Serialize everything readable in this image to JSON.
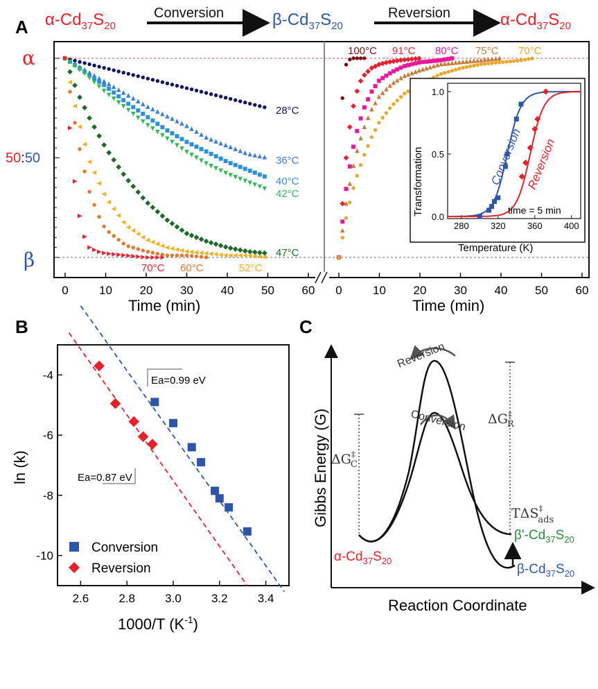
{
  "colors": {
    "red": "#e8202a",
    "blue": "#2e55a8",
    "green": "#2a8a3a",
    "black": "#111111",
    "c28": "#14145a",
    "c36": "#3f7ed8",
    "c40": "#2f8fd8",
    "c42": "#36b85a",
    "c47": "#1f6a2a",
    "c52": "#f0b020",
    "c60": "#e07830",
    "c70": "#e82030",
    "c100": "#7a1010",
    "c91": "#e82030",
    "c80": "#e81a9a",
    "c75": "#c87a3a",
    "c70r": "#e8a830",
    "fit_conv": "#2e55a8",
    "fit_rev": "#e8202a",
    "dash_alpha": "#d05060",
    "dash_beta": "#5a6aa0"
  },
  "panel_a": {
    "letter": "A",
    "header": {
      "alpha_start": "α-Cd",
      "alpha_sub1": "37",
      "alpha_S": "S",
      "alpha_sub2": "20",
      "conversion": "Conversion",
      "beta_mid": "β-Cd",
      "beta_sub1": "37",
      "beta_S": "S",
      "beta_sub2": "20",
      "reversion": "Reversion",
      "alpha_end": "α-Cd",
      "alpha_end_sub1": "37",
      "alpha_end_S": "S",
      "alpha_end_sub2": "20"
    },
    "ylabels": {
      "alpha": "α",
      "fifty_a": "50",
      "colon": ":",
      "fifty_b": "50",
      "beta": "β"
    },
    "xlabel_left": "Time (min)",
    "xlabel_right": "Time (min)",
    "xticks_left": [
      "0",
      "10",
      "20",
      "30",
      "40",
      "50",
      "60"
    ],
    "xticks_right": [
      "0",
      "10",
      "20",
      "30",
      "40",
      "50",
      "60"
    ],
    "temps_left": [
      "28°C",
      "36°C",
      "40°C",
      "42°C",
      "47°C",
      "70°C",
      "60°C",
      "52°C"
    ],
    "temps_right": [
      "100°C",
      "91°C",
      "80°C",
      "75°C",
      "70°C"
    ],
    "inset": {
      "ylabel": "Transformation",
      "xlabel": "Temperature (K)",
      "yticks": [
        "0.0",
        "0.5",
        "1.0"
      ],
      "xticks": [
        "280",
        "320",
        "360",
        "400"
      ],
      "conversion_label": "Conversion",
      "reversion_label": "Reversion",
      "note": "time = 5 min"
    }
  },
  "panel_b": {
    "letter": "B",
    "ylabel": "ln (k)",
    "xlabel": "1000/T (K",
    "xlabel_sup": "-1",
    "xlabel_close": ")",
    "yticks": [
      "-4",
      "-6",
      "-8",
      "-10"
    ],
    "xticks": [
      "2.6",
      "2.8",
      "3.0",
      "3.2",
      "3.4"
    ],
    "ea_conv": "Ea=0.99 eV",
    "ea_rev": "Ea=0.87 eV",
    "legend_conv": "Conversion",
    "legend_rev": "Reversion"
  },
  "panel_c": {
    "letter": "C",
    "ylabel": "Gibbs Energy (G)",
    "xlabel": "Reaction Coordinate",
    "reversion": "Reversion",
    "conversion": "Conversion",
    "dgc": "ΔG",
    "dgc_sup": "‡",
    "dgc_sub": "C",
    "dgr": "ΔG",
    "dgr_sup": "‡",
    "dgr_sub": "R",
    "tds": "TΔS",
    "tds_sup": "‡",
    "tds_sub": "ads",
    "alpha_state": "α-Cd",
    "alpha_sub1": "37",
    "alpha_S": "S",
    "alpha_sub2": "20",
    "betap_state": "β'-Cd",
    "betap_sub1": "37",
    "betap_S": "S",
    "betap_sub2": "20",
    "beta_state": "β-Cd",
    "beta_sub1": "37",
    "beta_S": "S",
    "beta_sub2": "20"
  },
  "chart_data": [
    {
      "type": "scatter",
      "panel": "A-left (conversion)",
      "xlabel": "Time (min)",
      "xlim": [
        -2,
        63
      ],
      "ylim": [
        0,
        1
      ],
      "ylabel_marks": [
        "α",
        "50:50",
        "β"
      ],
      "series": [
        {
          "name": "28°C",
          "color": "#14145a",
          "marker": "circle",
          "x": [
            0,
            5,
            10,
            15,
            20,
            25,
            30,
            35,
            40,
            45,
            50
          ],
          "y": [
            1,
            0.975,
            0.95,
            0.925,
            0.9,
            0.875,
            0.85,
            0.825,
            0.8,
            0.775,
            0.75
          ]
        },
        {
          "name": "36°C",
          "color": "#3f7ed8",
          "marker": "triangle",
          "x": [
            0,
            5,
            10,
            15,
            20,
            25,
            30,
            35,
            40,
            45,
            50
          ],
          "y": [
            1,
            0.94,
            0.88,
            0.82,
            0.76,
            0.71,
            0.66,
            0.6,
            0.56,
            0.52,
            0.5
          ]
        },
        {
          "name": "40°C",
          "color": "#2f8fd8",
          "marker": "square",
          "x": [
            0,
            5,
            10,
            15,
            20,
            25,
            30,
            35,
            40,
            45,
            50
          ],
          "y": [
            1,
            0.93,
            0.86,
            0.78,
            0.71,
            0.64,
            0.58,
            0.53,
            0.48,
            0.44,
            0.4
          ]
        },
        {
          "name": "42°C",
          "color": "#36b85a",
          "marker": "triangle-down",
          "x": [
            0,
            5,
            10,
            15,
            20,
            25,
            30,
            35,
            40,
            45,
            50
          ],
          "y": [
            1,
            0.92,
            0.83,
            0.75,
            0.67,
            0.6,
            0.53,
            0.47,
            0.42,
            0.38,
            0.34
          ]
        },
        {
          "name": "47°C",
          "color": "#1f6a2a",
          "marker": "diamond",
          "x": [
            0,
            3,
            6,
            10,
            15,
            20,
            25,
            30,
            35,
            40,
            45,
            50
          ],
          "y": [
            1,
            0.83,
            0.7,
            0.55,
            0.4,
            0.28,
            0.19,
            0.12,
            0.08,
            0.05,
            0.03,
            0.02
          ]
        },
        {
          "name": "52°C",
          "color": "#f0b020",
          "marker": "triangle-left",
          "x": [
            0,
            3,
            6,
            10,
            15,
            20,
            25,
            30,
            35,
            40,
            45,
            50
          ],
          "y": [
            1,
            0.7,
            0.48,
            0.3,
            0.16,
            0.09,
            0.05,
            0.03,
            0.02,
            0.01,
            0.01,
            0
          ]
        },
        {
          "name": "60°C",
          "color": "#e07830",
          "marker": "circle",
          "x": [
            0,
            2,
            4,
            6,
            8,
            10,
            15,
            20,
            25,
            30,
            35
          ],
          "y": [
            1,
            0.72,
            0.5,
            0.33,
            0.22,
            0.14,
            0.06,
            0.03,
            0.01,
            0.01,
            0
          ]
        },
        {
          "name": "70°C",
          "color": "#e82030",
          "marker": "triangle-right",
          "x": [
            0,
            1,
            2,
            3,
            4,
            5,
            6,
            8,
            10,
            15,
            20,
            25
          ],
          "y": [
            1,
            0.7,
            0.45,
            0.28,
            0.16,
            0.09,
            0.05,
            0.03,
            0.02,
            0.01,
            0,
            0
          ]
        }
      ]
    },
    {
      "type": "scatter",
      "panel": "A-right (reversion)",
      "xlabel": "Time (min)",
      "xlim": [
        -2,
        63
      ],
      "ylim": [
        0,
        1
      ],
      "series": [
        {
          "name": "100°C",
          "color": "#7a1010",
          "marker": "circle",
          "x": [
            0,
            0.5,
            1,
            1.5,
            2,
            3,
            4,
            5,
            6,
            7
          ],
          "y": [
            0,
            0.6,
            0.85,
            0.95,
            0.98,
            1,
            1,
            1,
            1,
            1
          ]
        },
        {
          "name": "91°C",
          "color": "#e82030",
          "marker": "diamond",
          "x": [
            0,
            1,
            2,
            3,
            4,
            5,
            6,
            8,
            10,
            12,
            15,
            20
          ],
          "y": [
            0,
            0.3,
            0.55,
            0.7,
            0.8,
            0.87,
            0.91,
            0.95,
            0.97,
            0.98,
            0.99,
            1
          ]
        },
        {
          "name": "80°C",
          "color": "#e81a9a",
          "marker": "square",
          "x": [
            0,
            1,
            2,
            4,
            6,
            8,
            10,
            13,
            16,
            20,
            25,
            28
          ],
          "y": [
            0,
            0.2,
            0.38,
            0.6,
            0.74,
            0.83,
            0.89,
            0.93,
            0.96,
            0.98,
            0.99,
            1
          ]
        },
        {
          "name": "75°C",
          "color": "#c87a3a",
          "marker": "triangle",
          "x": [
            0,
            1,
            2,
            4,
            6,
            8,
            10,
            13,
            16,
            20,
            25,
            30,
            35,
            40
          ],
          "y": [
            0,
            0.15,
            0.3,
            0.5,
            0.64,
            0.74,
            0.81,
            0.87,
            0.91,
            0.94,
            0.97,
            0.98,
            0.99,
            1
          ]
        },
        {
          "name": "70°C",
          "color": "#e8a830",
          "marker": "circle",
          "x": [
            0,
            2,
            4,
            6,
            8,
            10,
            13,
            16,
            20,
            25,
            30,
            35,
            40,
            45,
            48
          ],
          "y": [
            0,
            0.22,
            0.38,
            0.5,
            0.6,
            0.68,
            0.76,
            0.82,
            0.87,
            0.92,
            0.95,
            0.97,
            0.98,
            0.99,
            1
          ]
        }
      ]
    },
    {
      "type": "line",
      "panel": "A-inset",
      "xlabel": "Temperature (K)",
      "ylabel": "Transformation",
      "xlim": [
        265,
        410
      ],
      "ylim": [
        0,
        1.05
      ],
      "annotation": "time = 5 min",
      "series": [
        {
          "name": "Conversion",
          "color": "#2e55a8",
          "marker": "square",
          "x": [
            300,
            310,
            313,
            316,
            320,
            328,
            330,
            340,
            345
          ],
          "y": [
            0,
            0.05,
            0.08,
            0.12,
            0.15,
            0.4,
            0.5,
            0.78,
            0.9
          ]
        },
        {
          "name": "Reversion",
          "color": "#e8202a",
          "marker": "diamond",
          "x": [
            346,
            350,
            355,
            360,
            363,
            372
          ],
          "y": [
            0.32,
            0.43,
            0.55,
            0.7,
            0.78,
            1
          ]
        }
      ]
    },
    {
      "type": "scatter",
      "panel": "B",
      "xlabel": "1000/T (K-1)",
      "ylabel": "ln (k)",
      "xlim": [
        2.5,
        3.5
      ],
      "ylim": [
        -11,
        -3
      ],
      "series": [
        {
          "name": "Conversion",
          "color": "#2e55a8",
          "marker": "square",
          "x": [
            2.92,
            3.0,
            3.08,
            3.12,
            3.18,
            3.2,
            3.24,
            3.32
          ],
          "y": [
            -4.9,
            -5.6,
            -6.4,
            -6.9,
            -7.85,
            -8.1,
            -8.4,
            -9.2
          ]
        },
        {
          "name": "Reversion",
          "color": "#e8202a",
          "marker": "diamond",
          "x": [
            2.68,
            2.75,
            2.83,
            2.87,
            2.91
          ],
          "y": [
            -3.7,
            -4.95,
            -5.55,
            -6.05,
            -6.3
          ]
        }
      ],
      "fits": [
        {
          "label": "Ea=0.99 eV",
          "x": [
            2.6,
            3.48
          ],
          "y": [
            -1.7,
            -11.2
          ]
        },
        {
          "label": "Ea=0.87 eV",
          "x": [
            2.55,
            3.32
          ],
          "y": [
            -2.6,
            -11.0
          ]
        }
      ]
    },
    {
      "type": "diagram",
      "panel": "C",
      "xlabel": "Reaction Coordinate",
      "ylabel": "Gibbs Energy (G)"
    }
  ]
}
